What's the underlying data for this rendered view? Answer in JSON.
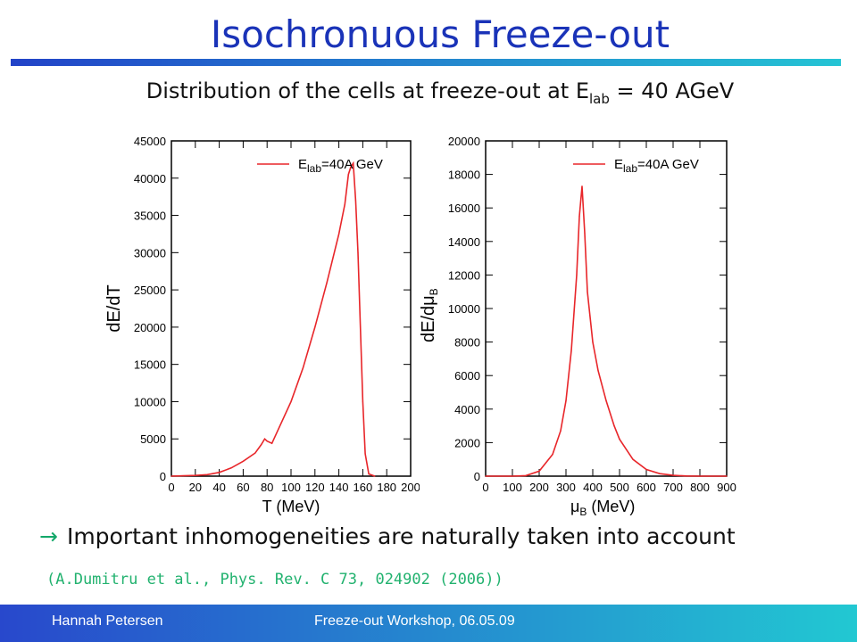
{
  "slide": {
    "title": "Isochronuous Freeze-out",
    "subtitle_main": "Distribution of the cells at freeze-out at E",
    "subtitle_sub": "lab",
    "subtitle_end": " = 40 AGeV",
    "bullet_arrow": "→",
    "bullet_text": "Important inhomogeneities are naturally taken into account",
    "reference": "(A.Dumitru et al., Phys. Rev. C 73, 024902 (2006))",
    "footer_left": "Hannah Petersen",
    "footer_center": "Freeze-out Workshop, 06.05.09"
  },
  "colors": {
    "title": "#1a33b8",
    "series": "#e8262a",
    "arrow": "#14a86a",
    "reference": "#22b26f",
    "footer_start": "#2848cc",
    "footer_end": "#22c8d2"
  },
  "chart_data": [
    {
      "type": "line",
      "xlabel": "T (MeV)",
      "ylabel": "dE/dT",
      "xlim": [
        0,
        200
      ],
      "ylim": [
        0,
        45000
      ],
      "xticks": [
        0,
        20,
        40,
        60,
        80,
        100,
        120,
        140,
        160,
        180,
        200
      ],
      "yticks": [
        0,
        5000,
        10000,
        15000,
        20000,
        25000,
        30000,
        35000,
        40000,
        45000
      ],
      "legend": {
        "label_main": "E",
        "label_sub": "lab",
        "label_end": "=40A GeV",
        "placement": "top-right"
      },
      "series": [
        {
          "name": "Elab=40A GeV",
          "x": [
            0,
            10,
            20,
            30,
            40,
            50,
            60,
            70,
            75,
            78,
            80,
            84,
            90,
            100,
            110,
            120,
            130,
            140,
            145,
            148,
            150,
            152,
            154,
            156,
            158,
            160,
            162,
            165,
            170
          ],
          "y": [
            0,
            50,
            100,
            200,
            500,
            1100,
            2000,
            3100,
            4200,
            5000,
            4700,
            4400,
            6500,
            10000,
            14500,
            20000,
            26000,
            32500,
            36500,
            40500,
            41500,
            42000,
            37000,
            30000,
            20000,
            10000,
            3000,
            300,
            0
          ]
        }
      ]
    },
    {
      "type": "line",
      "xlabel": "μB (MeV)",
      "xlabel_main": "μ",
      "xlabel_sub": "B",
      "xlabel_end": " (MeV)",
      "ylabel": "dE/dμB",
      "ylabel_main": "dE/dμ",
      "ylabel_sub": "B",
      "xlim": [
        0,
        900
      ],
      "ylim": [
        0,
        20000
      ],
      "xticks": [
        0,
        100,
        200,
        300,
        400,
        500,
        600,
        700,
        800,
        900
      ],
      "yticks": [
        0,
        2000,
        4000,
        6000,
        8000,
        10000,
        12000,
        14000,
        16000,
        18000,
        20000
      ],
      "legend": {
        "label_main": "E",
        "label_sub": "lab",
        "label_end": "=40A GeV",
        "placement": "top-right"
      },
      "series": [
        {
          "name": "Elab=40A GeV",
          "x": [
            0,
            100,
            150,
            200,
            250,
            280,
            300,
            320,
            340,
            350,
            360,
            370,
            380,
            400,
            420,
            450,
            480,
            500,
            550,
            600,
            650,
            700,
            750,
            800,
            850,
            900
          ],
          "y": [
            0,
            0,
            30,
            300,
            1300,
            2700,
            4500,
            7500,
            12000,
            15500,
            17300,
            14500,
            11000,
            8000,
            6300,
            4500,
            3000,
            2200,
            1000,
            400,
            150,
            50,
            10,
            0,
            0,
            0
          ]
        }
      ]
    }
  ]
}
